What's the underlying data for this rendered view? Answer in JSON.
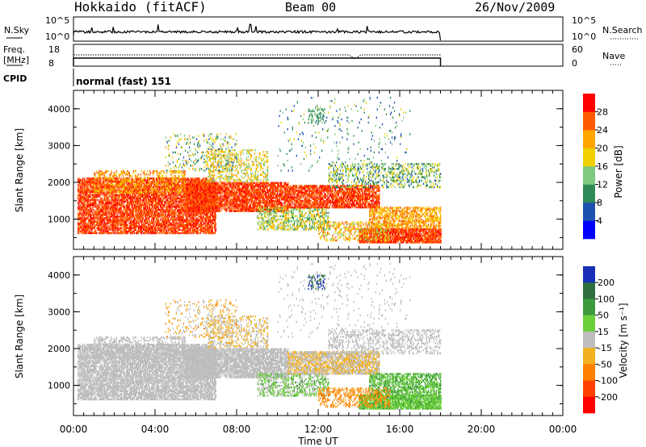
{
  "header": {
    "station": "Hokkaido (fitACF)",
    "beam": "Beam 00",
    "date": "26/Nov/2009"
  },
  "status_panels": {
    "nsky": {
      "label": "N.Sky",
      "ticks": [
        "10^5",
        "10^0"
      ],
      "right_label": "N.Search",
      "right_ticks": [
        "10^5",
        "10^0"
      ]
    },
    "freq": {
      "label_line1": "Freq.",
      "label_line2": "[MHz]",
      "ticks": [
        "18",
        "8"
      ],
      "right_label": "Nave",
      "right_ticks": [
        "60",
        "0"
      ]
    },
    "cpid": {
      "label": "CPID",
      "value": "normal (fast) 151"
    }
  },
  "colors": {
    "power": [
      "#0000ff",
      "#1d4fb0",
      "#2e8b57",
      "#7fc97f",
      "#f0d000",
      "#ffa500",
      "#ff5a00",
      "#ff0000"
    ],
    "velocity": [
      "#1a2fb8",
      "#2f6f3f",
      "#3d9a3d",
      "#6ccf3a",
      "#bdbdbd",
      "#f3b020",
      "#ff8000",
      "#ff4000",
      "#ff0000"
    ],
    "gray": "#bdbdbd"
  },
  "chart_data": [
    {
      "type": "heatmap",
      "name": "power",
      "xlabel": "",
      "ylabel": "Slant Range [km]",
      "xlim": [
        0,
        24
      ],
      "ylim": [
        180,
        4500
      ],
      "yticks": [
        1000,
        2000,
        3000,
        4000
      ],
      "colorbar": {
        "label": "Power [dB]",
        "ticks": [
          4,
          8,
          12,
          16,
          20,
          24,
          28
        ]
      }
    },
    {
      "type": "heatmap",
      "name": "velocity",
      "xlabel": "Time UT",
      "ylabel": "Slant Range [km]",
      "xlim": [
        0,
        24
      ],
      "ylim": [
        180,
        4500
      ],
      "yticks": [
        1000,
        2000,
        3000,
        4000
      ],
      "xticks": [
        "00:00",
        "04:00",
        "08:00",
        "12:00",
        "16:00",
        "20:00",
        "00:00"
      ],
      "colorbar": {
        "label": "Velocity [m s⁻¹]",
        "ticks": [
          200,
          100,
          50,
          15,
          -15,
          -50,
          -100,
          -200
        ]
      }
    }
  ],
  "scatter_regions": [
    {
      "t": [
        0.2,
        7.0
      ],
      "r": [
        600,
        2100
      ],
      "p": [
        24,
        30
      ],
      "v": [
        -15,
        15
      ],
      "d": 0.75
    },
    {
      "t": [
        1.0,
        5.5
      ],
      "r": [
        1700,
        2300
      ],
      "p": [
        16,
        28
      ],
      "v": [
        -15,
        15
      ],
      "d": 0.35
    },
    {
      "t": [
        5.5,
        10.5
      ],
      "r": [
        1200,
        2000
      ],
      "p": [
        24,
        30
      ],
      "v": [
        -15,
        15
      ],
      "d": 0.8
    },
    {
      "t": [
        6.5,
        9.5
      ],
      "r": [
        2000,
        2900
      ],
      "p": [
        12,
        24
      ],
      "v": [
        -50,
        15
      ],
      "d": 0.3
    },
    {
      "t": [
        9.0,
        12.5
      ],
      "r": [
        700,
        1300
      ],
      "p": [
        10,
        22
      ],
      "v": [
        -15,
        60
      ],
      "d": 0.45
    },
    {
      "t": [
        10.5,
        15.0
      ],
      "r": [
        1300,
        1900
      ],
      "p": [
        24,
        30
      ],
      "v": [
        -40,
        15
      ],
      "d": 0.75
    },
    {
      "t": [
        12.5,
        18.0
      ],
      "r": [
        1850,
        2500
      ],
      "p": [
        6,
        20
      ],
      "v": [
        -15,
        15
      ],
      "d": 0.3
    },
    {
      "t": [
        14.0,
        18.0
      ],
      "r": [
        350,
        750
      ],
      "p": [
        24,
        30
      ],
      "v": [
        15,
        60
      ],
      "d": 0.85
    },
    {
      "t": [
        14.5,
        18.0
      ],
      "r": [
        750,
        1300
      ],
      "p": [
        18,
        26
      ],
      "v": [
        30,
        70
      ],
      "d": 0.6
    },
    {
      "t": [
        12.0,
        15.5
      ],
      "r": [
        400,
        900
      ],
      "p": [
        14,
        26
      ],
      "v": [
        -100,
        -30
      ],
      "d": 0.35
    },
    {
      "t": [
        4.5,
        8.0
      ],
      "r": [
        2300,
        3300
      ],
      "p": [
        6,
        22
      ],
      "v": [
        -60,
        15
      ],
      "d": 0.12
    },
    {
      "t": [
        10.0,
        16.5
      ],
      "r": [
        2300,
        4300
      ],
      "p": [
        4,
        18
      ],
      "v": [
        -15,
        15
      ],
      "d": 0.04
    },
    {
      "t": [
        11.5,
        12.3
      ],
      "r": [
        3600,
        4000
      ],
      "p": [
        8,
        14
      ],
      "v": [
        150,
        250
      ],
      "d": 0.25
    }
  ]
}
